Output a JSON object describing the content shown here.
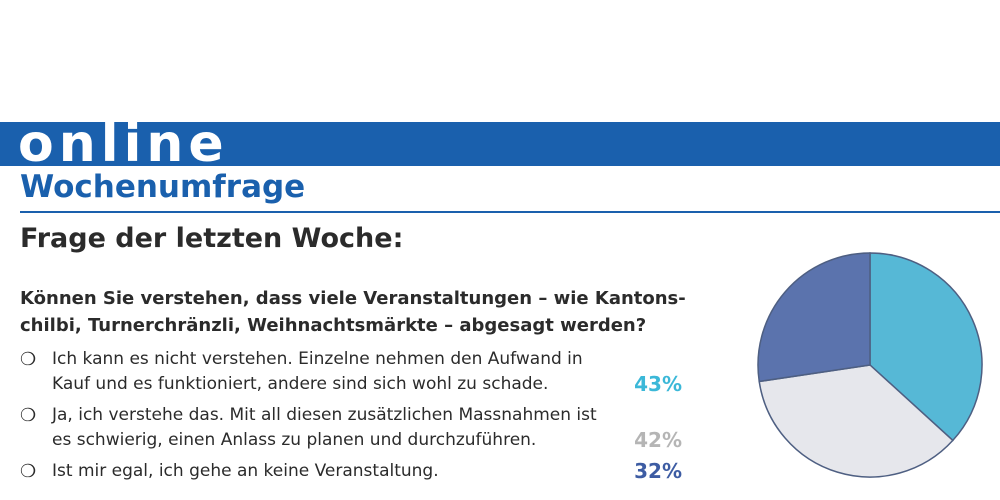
{
  "header": {
    "section_word": "online",
    "title": "Wochenumfrage"
  },
  "poll": {
    "heading": "Frage der letzten Woche:",
    "question": "Können Sie verstehen, dass viele Veranstaltungen – wie Kantons-chilbi, Turnerchränzli, Weihnachtsmärkte – abgesagt werden?",
    "options": [
      {
        "text": "Ich kann es nicht verstehen. Einzelne nehmen den Aufwand in Kauf und es funktioniert, andere sind sich wohl zu schade.",
        "percent_label": "43%"
      },
      {
        "text": "Ja, ich verstehe das. Mit all diesen zusätzlichen Massnahmen ist es schwierig, einen Anlass zu planen und durchzuführen.",
        "percent_label": "42%"
      },
      {
        "text": "Ist mir egal, ich gehe an keine Veranstaltung.",
        "percent_label": "32%"
      }
    ],
    "radio_glyph": "❍"
  },
  "colors": {
    "brand_blue": "#1a60ad",
    "option_1": "#56b8d6",
    "option_2": "#e6e7ec",
    "option_3": "#5b73ad",
    "pct_1": "#3bb8d8",
    "pct_2": "#b5b5b5",
    "pct_3": "#3d5ca3",
    "pie_stroke": "#4e5f82"
  },
  "chart_data": {
    "type": "pie",
    "categories": [
      "Ich kann es nicht verstehen.",
      "Ja, ich verstehe das.",
      "Ist mir egal, ich gehe an keine Veranstaltung."
    ],
    "values": [
      43,
      42,
      32
    ],
    "start_angle_deg": 0,
    "direction": "clockwise"
  }
}
